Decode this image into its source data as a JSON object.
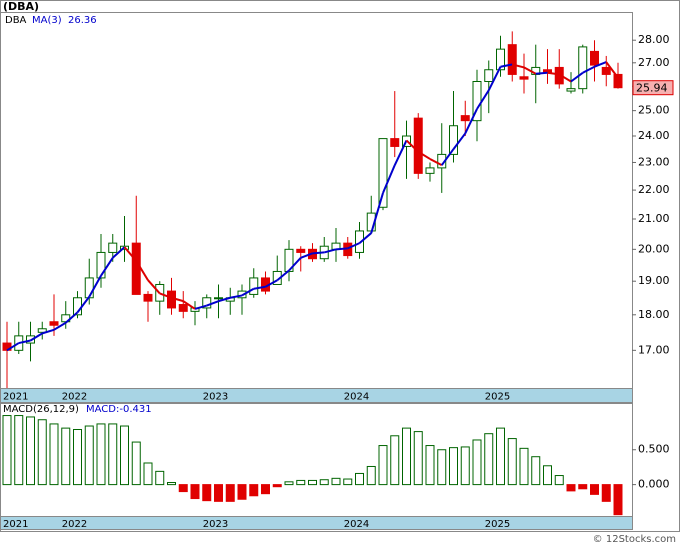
{
  "chart_data": [
    {
      "type": "candlestick",
      "title": "(DBA)",
      "categories": [
        "2021",
        null,
        null,
        null,
        null,
        "2022",
        null,
        null,
        null,
        null,
        null,
        null,
        null,
        null,
        null,
        null,
        null,
        "2023",
        null,
        null,
        null,
        null,
        null,
        null,
        null,
        null,
        null,
        null,
        null,
        "2024",
        null,
        null,
        null,
        null,
        null,
        null,
        null,
        null,
        null,
        null,
        null,
        "2025",
        null,
        null,
        null,
        null,
        null,
        null,
        null,
        null,
        null,
        null,
        null
      ],
      "series": [
        {
          "name": "DBA",
          "open": [
            17.2,
            17.0,
            17.2,
            17.5,
            17.8,
            17.8,
            18.0,
            18.5,
            19.1,
            19.9,
            20.0,
            20.2,
            18.6,
            18.4,
            18.7,
            18.3,
            18.1,
            18.2,
            18.5,
            18.4,
            18.5,
            18.6,
            19.1,
            18.9,
            19.3,
            20.0,
            20.0,
            19.7,
            20.0,
            20.2,
            19.9,
            20.6,
            21.4,
            23.9,
            23.6,
            24.7,
            22.6,
            22.8,
            23.3,
            24.8,
            24.6,
            26.2,
            26.7,
            27.8,
            26.4,
            26.5,
            26.7,
            26.8,
            25.8,
            25.9,
            27.5,
            26.8,
            26.5
          ],
          "high": [
            17.8,
            17.8,
            17.8,
            17.8,
            18.6,
            18.4,
            18.7,
            19.7,
            20.5,
            20.5,
            21.1,
            21.8,
            18.7,
            19.0,
            19.1,
            18.7,
            18.4,
            18.6,
            18.9,
            18.8,
            18.9,
            19.4,
            19.3,
            19.8,
            20.3,
            20.1,
            20.2,
            20.4,
            20.7,
            20.4,
            20.9,
            21.8,
            23.9,
            25.8,
            24.6,
            24.9,
            23.0,
            24.5,
            25.8,
            25.4,
            26.7,
            27.1,
            28.2,
            28.4,
            27.4,
            27.8,
            27.6,
            27.6,
            26.6,
            27.8,
            28.0,
            27.3,
            27.0
          ],
          "low": [
            16.0,
            16.9,
            16.7,
            17.3,
            17.4,
            17.6,
            17.9,
            18.3,
            18.8,
            19.6,
            19.6,
            18.6,
            17.8,
            18.0,
            18.0,
            17.9,
            17.7,
            17.9,
            17.9,
            18.0,
            18.0,
            18.5,
            18.6,
            18.9,
            19.0,
            19.3,
            19.6,
            19.6,
            19.6,
            19.7,
            19.7,
            20.5,
            21.3,
            23.2,
            22.4,
            22.4,
            22.3,
            21.9,
            23.0,
            24.0,
            23.8,
            24.9,
            26.4,
            26.2,
            25.7,
            25.3,
            26.1,
            25.9,
            25.7,
            25.7,
            26.2,
            26.0,
            25.9
          ],
          "close": [
            17.0,
            17.4,
            17.4,
            17.6,
            17.7,
            18.0,
            18.5,
            19.1,
            19.9,
            20.2,
            20.1,
            18.6,
            18.4,
            18.9,
            18.2,
            18.1,
            18.2,
            18.5,
            18.5,
            18.5,
            18.7,
            19.1,
            18.7,
            19.3,
            20.0,
            19.9,
            19.7,
            20.1,
            20.2,
            19.8,
            20.6,
            21.2,
            23.9,
            23.6,
            24.0,
            22.6,
            22.8,
            23.3,
            24.4,
            24.6,
            26.2,
            26.7,
            27.6,
            26.5,
            26.3,
            26.8,
            26.6,
            26.1,
            25.9,
            27.7,
            26.9,
            26.5,
            25.94
          ]
        }
      ],
      "up_color": "#006400",
      "down_color": "#e00000",
      "ma": {
        "name": "MA(3)",
        "up_color": "#0000cc",
        "down_color": "#dd0000",
        "values": [
          17.0,
          17.2,
          17.27,
          17.47,
          17.57,
          17.77,
          18.07,
          18.53,
          19.17,
          19.73,
          20.07,
          19.63,
          19.03,
          18.63,
          18.5,
          18.4,
          18.17,
          18.27,
          18.4,
          18.5,
          18.57,
          18.77,
          18.83,
          19.03,
          19.33,
          19.73,
          19.87,
          19.9,
          20.0,
          20.03,
          20.2,
          20.53,
          21.9,
          22.9,
          23.83,
          23.4,
          23.13,
          22.9,
          23.5,
          24.1,
          25.07,
          25.83,
          26.83,
          26.93,
          26.8,
          26.53,
          26.57,
          26.5,
          26.2,
          26.57,
          26.83,
          27.03,
          26.36
        ]
      },
      "last_price": 25.94,
      "ylim": [
        16.0,
        29.3
      ],
      "log_scale": true,
      "yticks": [
        {
          "value": 17,
          "label": "17.00"
        },
        {
          "value": 18,
          "label": "18.00"
        },
        {
          "value": 19,
          "label": "19.00"
        },
        {
          "value": 20,
          "label": "20.00"
        },
        {
          "value": 21,
          "label": "21.00"
        },
        {
          "value": 22,
          "label": "22.00"
        },
        {
          "value": 23,
          "label": "23.00"
        },
        {
          "value": 24,
          "label": "24.00"
        },
        {
          "value": 25,
          "label": "25.00"
        },
        {
          "value": 26,
          "label": "26.00"
        },
        {
          "value": 27,
          "label": "27.00"
        },
        {
          "value": 28,
          "label": "28.00"
        }
      ],
      "axis_band_color": "#a8d4e4"
    },
    {
      "type": "bar",
      "title": "MACD(26,12,9)",
      "legend": "MACD:-0.431",
      "categories": [
        "2021",
        null,
        null,
        null,
        null,
        "2022",
        null,
        null,
        null,
        null,
        null,
        null,
        null,
        null,
        null,
        null,
        null,
        "2023",
        null,
        null,
        null,
        null,
        null,
        null,
        null,
        null,
        null,
        null,
        null,
        "2024",
        null,
        null,
        null,
        null,
        null,
        null,
        null,
        null,
        null,
        null,
        null,
        "2025",
        null,
        null,
        null,
        null,
        null,
        null,
        null,
        null,
        null,
        null,
        null
      ],
      "values": [
        0.99,
        0.99,
        0.97,
        0.93,
        0.87,
        0.81,
        0.79,
        0.84,
        0.87,
        0.87,
        0.84,
        0.61,
        0.31,
        0.19,
        0.03,
        -0.1,
        -0.2,
        -0.23,
        -0.24,
        -0.24,
        -0.21,
        -0.16,
        -0.13,
        -0.03,
        0.04,
        0.06,
        0.06,
        0.07,
        0.09,
        0.08,
        0.16,
        0.26,
        0.56,
        0.7,
        0.81,
        0.76,
        0.56,
        0.5,
        0.53,
        0.54,
        0.64,
        0.73,
        0.81,
        0.66,
        0.52,
        0.4,
        0.27,
        0.13,
        -0.09,
        -0.06,
        -0.14,
        -0.24,
        -0.431
      ],
      "up_color": "#006400",
      "down_color": "#e00000",
      "ylim": [
        -0.45,
        1.17
      ],
      "yticks": [
        {
          "value": 0.5,
          "label": "0.500"
        },
        {
          "value": 0,
          "label": "0.000"
        }
      ],
      "axis_band_color": "#a8d4e4"
    }
  ],
  "footer": "© 12Stocks.com"
}
